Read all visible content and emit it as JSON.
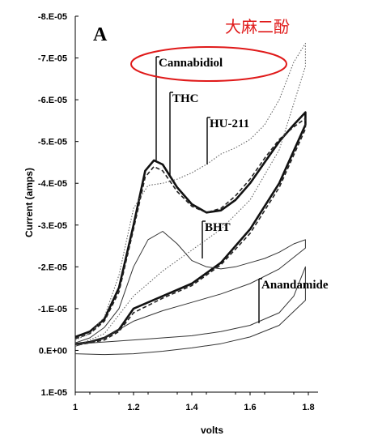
{
  "chart_data": {
    "type": "line",
    "panel_label": "A",
    "annotation": "大麻二酚",
    "xlabel": "volts",
    "ylabel": "Current (amps)",
    "xlim": [
      1.0,
      1.8
    ],
    "ylim_display": [
      -8e-05,
      1e-05
    ],
    "xticks": [
      "1",
      "1.2",
      "1.4",
      "1.6",
      "1.8"
    ],
    "yticks": [
      "-8.E-05",
      "-7.E-05",
      "-6.E-05",
      "-5.E-05",
      "-4.E-05",
      "-3.E-05",
      "-2.E-05",
      "-1.E-05",
      "0.E+00",
      "1.E-05"
    ],
    "highlight_color": "#e01a1a",
    "series": [
      {
        "name": "Cannabidiol",
        "style": "thick",
        "x": [
          1.0,
          1.05,
          1.1,
          1.15,
          1.2,
          1.24,
          1.27,
          1.3,
          1.35,
          1.4,
          1.45,
          1.5,
          1.55,
          1.6,
          1.65,
          1.7,
          1.75,
          1.79,
          1.79,
          1.7,
          1.6,
          1.5,
          1.4,
          1.3,
          1.2,
          1.15,
          1.1,
          1.05,
          1.0
        ],
        "y": [
          -3.2e-06,
          -4.5e-06,
          -7.5e-06,
          -1.5e-05,
          -3e-05,
          -4.3e-05,
          -4.55e-05,
          -4.45e-05,
          -3.9e-05,
          -3.5e-05,
          -3.3e-05,
          -3.35e-05,
          -3.6e-05,
          -4e-05,
          -4.5e-05,
          -5e-05,
          -5.4e-05,
          -5.7e-05,
          -5.4e-05,
          -4e-05,
          -2.9e-05,
          -2.1e-05,
          -1.6e-05,
          -1.3e-05,
          -1e-05,
          -5e-06,
          -3e-06,
          -2e-06,
          -1.5e-06
        ]
      },
      {
        "name": "THC",
        "style": "dashed",
        "x": [
          1.0,
          1.05,
          1.1,
          1.15,
          1.2,
          1.24,
          1.27,
          1.3,
          1.35,
          1.4,
          1.45,
          1.5,
          1.55,
          1.6,
          1.65,
          1.7,
          1.75,
          1.79,
          1.79,
          1.7,
          1.6,
          1.5,
          1.4,
          1.3,
          1.2,
          1.15,
          1.1,
          1.05,
          1.0
        ],
        "y": [
          -2.8e-06,
          -4e-06,
          -7e-06,
          -1.4e-05,
          -2.9e-05,
          -4.15e-05,
          -4.4e-05,
          -4.3e-05,
          -3.8e-05,
          -3.45e-05,
          -3.3e-05,
          -3.4e-05,
          -3.7e-05,
          -4.1e-05,
          -4.6e-05,
          -5.05e-05,
          -5.35e-05,
          -5.55e-05,
          -5.3e-05,
          -3.9e-05,
          -2.8e-05,
          -2.05e-05,
          -1.55e-05,
          -1.25e-05,
          -9e-06,
          -4.5e-06,
          -2.5e-06,
          -1.8e-06,
          -1.2e-06
        ]
      },
      {
        "name": "HU-211",
        "style": "dotted",
        "x": [
          1.0,
          1.05,
          1.1,
          1.15,
          1.2,
          1.25,
          1.3,
          1.35,
          1.4,
          1.45,
          1.5,
          1.55,
          1.6,
          1.65,
          1.7,
          1.75,
          1.79,
          1.79,
          1.7,
          1.6,
          1.5,
          1.4,
          1.3,
          1.2,
          1.1,
          1.0
        ],
        "y": [
          -2.5e-06,
          -4e-06,
          -8e-06,
          -1.8e-05,
          -3.4e-05,
          -3.95e-05,
          -4e-05,
          -4.1e-05,
          -4.25e-05,
          -4.45e-05,
          -4.7e-05,
          -4.85e-05,
          -5.05e-05,
          -5.4e-05,
          -6e-05,
          -6.9e-05,
          -7.35e-05,
          -6.8e-05,
          -4.8e-05,
          -3.6e-05,
          -2.9e-05,
          -2.4e-05,
          -1.9e-05,
          -1.3e-05,
          -4e-06,
          -1e-06
        ]
      },
      {
        "name": "BHT",
        "style": "thin",
        "x": [
          1.0,
          1.05,
          1.1,
          1.15,
          1.2,
          1.25,
          1.3,
          1.35,
          1.4,
          1.45,
          1.5,
          1.55,
          1.6,
          1.65,
          1.7,
          1.75,
          1.79,
          1.79,
          1.7,
          1.6,
          1.5,
          1.4,
          1.3,
          1.2,
          1.1,
          1.0
        ],
        "y": [
          -1.8e-06,
          -3e-06,
          -5.5e-06,
          -1e-05,
          -2e-05,
          -2.65e-05,
          -2.85e-05,
          -2.55e-05,
          -2.15e-05,
          -2e-05,
          -1.95e-05,
          -2e-05,
          -2.1e-05,
          -2.2e-05,
          -2.35e-05,
          -2.55e-05,
          -2.65e-05,
          -2.45e-05,
          -1.95e-05,
          -1.6e-05,
          -1.35e-05,
          -1.15e-05,
          -9.5e-06,
          -7e-06,
          -3e-06,
          -1e-06
        ]
      },
      {
        "name": "Anandamide",
        "style": "thin",
        "x": [
          1.0,
          1.1,
          1.2,
          1.3,
          1.4,
          1.5,
          1.6,
          1.7,
          1.75,
          1.79,
          1.79,
          1.7,
          1.6,
          1.5,
          1.4,
          1.3,
          1.2,
          1.1,
          1.0
        ],
        "y": [
          -1.5e-06,
          -2e-06,
          -2.5e-06,
          -3e-06,
          -3.5e-06,
          -4.5e-06,
          -6e-06,
          -9e-06,
          -1.3e-05,
          -2e-05,
          -1.2e-05,
          -6e-06,
          -3.2e-06,
          -1.6e-06,
          -6e-07,
          2e-07,
          8e-07,
          1e-06,
          8e-07
        ]
      }
    ],
    "labels": [
      {
        "text": "Cannabidiol",
        "x": 1.27,
        "y": -4.55e-05
      },
      {
        "text": "THC",
        "x": 1.31,
        "y": -4.2e-05
      },
      {
        "text": "HU-211",
        "x": 1.45,
        "y": -4.45e-05
      },
      {
        "text": "BHT",
        "x": 1.46,
        "y": -2.2e-05
      },
      {
        "text": "Anandamide",
        "x": 1.63,
        "y": -6.5e-06
      }
    ]
  }
}
